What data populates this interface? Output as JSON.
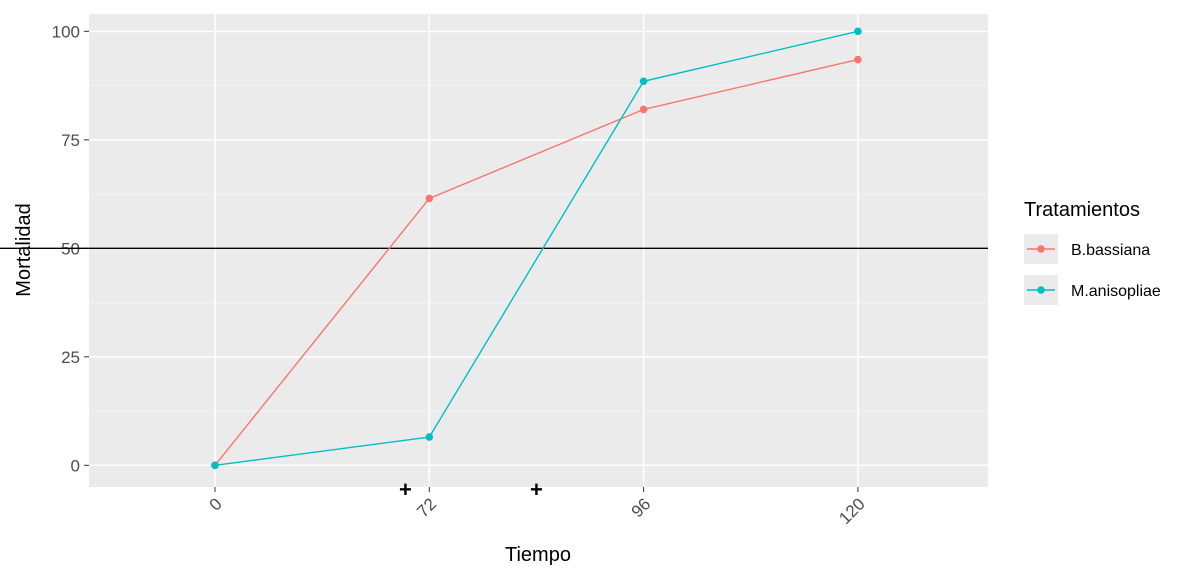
{
  "chart_data": {
    "type": "line",
    "x": [
      "0",
      "72",
      "96",
      "120"
    ],
    "xlabel": "Tiempo",
    "ylabel": "Mortalidad",
    "ylim": [
      -5,
      104
    ],
    "yticks": [
      0,
      25,
      50,
      75,
      100
    ],
    "grid": true,
    "x_tick_rotation": 45,
    "reference_line": {
      "y": 50,
      "color": "#000000"
    },
    "annotations": [
      {
        "text": "+",
        "x": 64
      },
      {
        "text": "+",
        "x": 84
      }
    ],
    "legend": {
      "title": "Tratamientos",
      "placement": "right"
    },
    "series": [
      {
        "name": "B.bassiana",
        "color": "#F8766D",
        "values": [
          0,
          61.5,
          82,
          93.5
        ]
      },
      {
        "name": "M.anisopliae",
        "color": "#00BFC4",
        "values": [
          0,
          6.5,
          88.5,
          100
        ]
      }
    ]
  }
}
